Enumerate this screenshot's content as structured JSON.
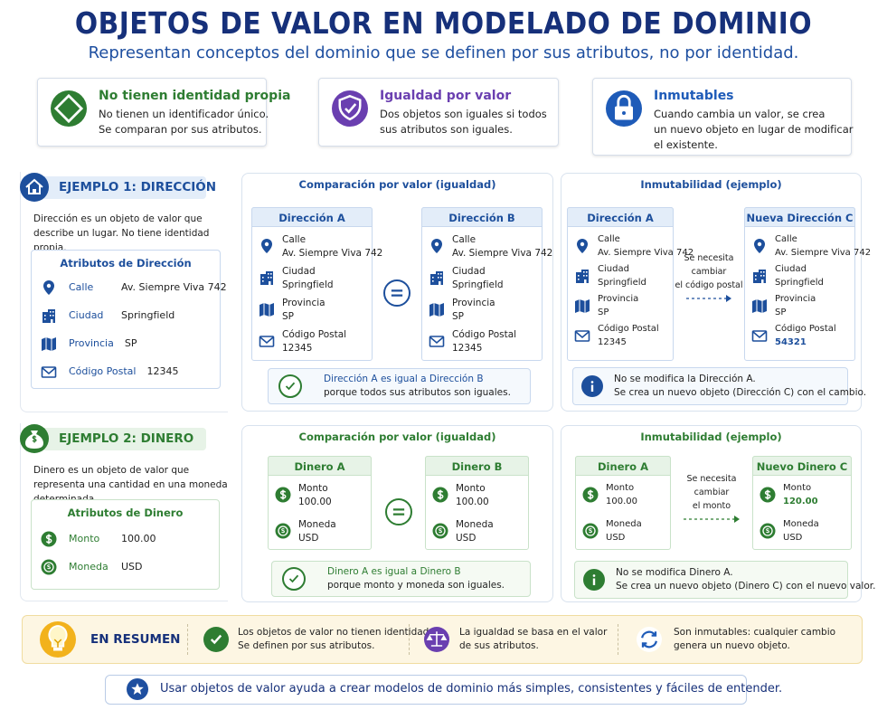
{
  "header": {
    "title": "OBJETOS DE VALOR EN MODELADO DE DOMINIO",
    "subtitle": "Representan conceptos del dominio que se definen por sus atributos, no por identidad."
  },
  "features": [
    {
      "title": "No tienen identidad propia",
      "lines": [
        "No tienen un identificador único.",
        "Se comparan por sus atributos."
      ]
    },
    {
      "title": "Igualdad por valor",
      "lines": [
        "Dos objetos son iguales si todos",
        "sus atributos son iguales."
      ]
    },
    {
      "title": "Inmutables",
      "lines": [
        "Cuando cambia un valor, se crea",
        "un nuevo objeto en lugar de modificar",
        "el existente."
      ]
    }
  ],
  "examples": [
    {
      "badge": "EJEMPLO 1: DIRECCIÓN",
      "description": "Dirección es un objeto de valor que describe un lugar. No tiene identidad propia.",
      "attributes_title": "Atributos de Dirección",
      "attributes": [
        {
          "label": "Calle",
          "value": "Av. Siempre Viva 742"
        },
        {
          "label": "Ciudad",
          "value": "Springfield"
        },
        {
          "label": "Provincia",
          "value": "SP"
        },
        {
          "label": "Código Postal",
          "value": "12345"
        }
      ],
      "comparison": {
        "title": "Comparación por valor (igualdad)",
        "objects": [
          {
            "name": "Dirección A",
            "fields": [
              {
                "label": "Calle",
                "value": "Av. Siempre Viva 742"
              },
              {
                "label": "Ciudad",
                "value": "Springfield"
              },
              {
                "label": "Provincia",
                "value": "SP"
              },
              {
                "label": "Código Postal",
                "value": "12345"
              }
            ]
          },
          {
            "name": "Dirección B",
            "fields": [
              {
                "label": "Calle",
                "value": "Av. Siempre Viva 742"
              },
              {
                "label": "Ciudad",
                "value": "Springfield"
              },
              {
                "label": "Provincia",
                "value": "SP"
              },
              {
                "label": "Código Postal",
                "value": "12345"
              }
            ]
          }
        ],
        "result": [
          "Dirección A es igual a Dirección B",
          "porque todos sus atributos son iguales."
        ]
      },
      "immutability": {
        "title": "Inmutabilidad (ejemplo)",
        "objects": [
          {
            "name": "Dirección A",
            "fields": [
              {
                "label": "Calle",
                "value": "Av. Siempre Viva 742"
              },
              {
                "label": "Ciudad",
                "value": "Springfield"
              },
              {
                "label": "Provincia",
                "value": "SP"
              },
              {
                "label": "Código Postal",
                "value": "12345"
              }
            ]
          },
          {
            "name": "Nueva Dirección C",
            "fields": [
              {
                "label": "Calle",
                "value": "Av. Siempre Viva 742"
              },
              {
                "label": "Ciudad",
                "value": "Springfield"
              },
              {
                "label": "Provincia",
                "value": "SP"
              },
              {
                "label": "Código Postal",
                "value": "54321"
              }
            ]
          }
        ],
        "arrow_label": [
          "Se necesita",
          "cambiar",
          "el código postal"
        ],
        "note": [
          "No se modifica la Dirección A.",
          "Se crea un nuevo objeto (Dirección C) con el cambio."
        ]
      }
    },
    {
      "badge": "EJEMPLO 2: DINERO",
      "description": "Dinero es un objeto de valor que representa una cantidad en una moneda determinada.",
      "attributes_title": "Atributos de Dinero",
      "attributes": [
        {
          "label": "Monto",
          "value": "100.00"
        },
        {
          "label": "Moneda",
          "value": "USD"
        }
      ],
      "comparison": {
        "title": "Comparación por valor (igualdad)",
        "objects": [
          {
            "name": "Dinero A",
            "fields": [
              {
                "label": "Monto",
                "value": "100.00"
              },
              {
                "label": "Moneda",
                "value": "USD"
              }
            ]
          },
          {
            "name": "Dinero B",
            "fields": [
              {
                "label": "Monto",
                "value": "100.00"
              },
              {
                "label": "Moneda",
                "value": "USD"
              }
            ]
          }
        ],
        "result": [
          "Dinero A es igual a Dinero B",
          "porque monto y moneda son iguales."
        ]
      },
      "immutability": {
        "title": "Inmutabilidad (ejemplo)",
        "objects": [
          {
            "name": "Dinero A",
            "fields": [
              {
                "label": "Monto",
                "value": "100.00"
              },
              {
                "label": "Moneda",
                "value": "USD"
              }
            ]
          },
          {
            "name": "Nuevo Dinero C",
            "fields": [
              {
                "label": "Monto",
                "value": "120.00"
              },
              {
                "label": "Moneda",
                "value": "USD"
              }
            ]
          }
        ],
        "arrow_label": [
          "Se necesita",
          "cambiar",
          "el monto"
        ],
        "note": [
          "No se modifica Dinero A.",
          "Se crea un nuevo objeto (Dinero C) con el nuevo valor."
        ]
      }
    }
  ],
  "summary": {
    "label": "EN RESUMEN",
    "items": [
      [
        "Los objetos de valor no tienen identidad.",
        "Se definen por sus atributos."
      ],
      [
        "La igualdad se basa en el valor",
        "de sus atributos."
      ],
      [
        "Son inmutables: cualquier cambio",
        "genera un nuevo objeto."
      ]
    ]
  },
  "footer": "Usar objetos de valor ayuda a crear modelos de dominio más simples, consistentes y fáciles de entender."
}
